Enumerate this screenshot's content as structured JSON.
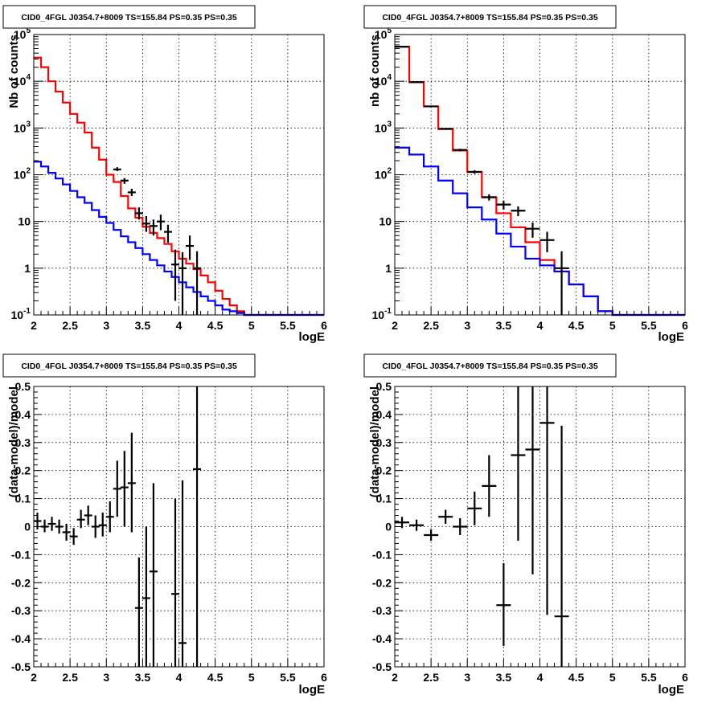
{
  "chart_data": [
    {
      "type": "step",
      "title": "CID0_4FGL J0354.7+8009 TS=155.84 PS=0.35 PS=0.35",
      "xlabel": "logE",
      "ylabel": "Nb of counts",
      "log_y": true,
      "xlim": [
        2,
        6
      ],
      "ylim": [
        0.1,
        100000
      ],
      "grid": true,
      "xticks": [
        "2",
        "2.5",
        "3",
        "3.5",
        "4",
        "4.5",
        "5",
        "5.5",
        "6"
      ],
      "yticks": [
        "10^-1",
        "1",
        "10",
        "10^2",
        "10^3",
        "10^4",
        "10^5"
      ],
      "series": [
        {
          "color": "#ff0000",
          "edges": [
            2.0,
            2.1,
            2.2,
            2.3,
            2.4,
            2.5,
            2.6,
            2.7,
            2.8,
            2.9,
            3.0,
            3.1,
            3.2,
            3.3,
            3.4,
            3.5,
            3.6,
            3.7,
            3.8,
            3.9,
            4.0,
            4.1,
            4.2,
            4.3,
            4.4,
            4.5,
            4.6,
            4.7,
            4.8,
            4.9,
            5.0,
            5.1,
            5.2,
            5.3,
            5.4,
            5.5,
            5.6,
            5.7,
            5.8,
            5.9,
            6.0
          ],
          "values": [
            32000,
            20000,
            10000,
            6000,
            3500,
            2000,
            1300,
            800,
            380,
            210,
            100,
            70,
            35,
            19,
            12,
            7.7,
            5.7,
            4.4,
            3.3,
            2.3,
            1.6,
            1.25,
            0.95,
            0.7,
            0.5,
            0.33,
            0.22,
            0.16,
            0.12,
            0.1,
            0.1,
            0.1,
            0.1,
            0.1,
            0.1,
            0.1,
            0.1,
            0.1,
            0.1,
            0.1
          ]
        },
        {
          "color": "#0000ff",
          "edges": [
            2.0,
            2.1,
            2.2,
            2.3,
            2.4,
            2.5,
            2.6,
            2.7,
            2.8,
            2.9,
            3.0,
            3.1,
            3.2,
            3.3,
            3.4,
            3.5,
            3.6,
            3.7,
            3.8,
            3.9,
            4.0,
            4.1,
            4.2,
            4.3,
            4.4,
            4.5,
            4.6,
            4.7,
            4.8,
            4.9,
            5.0,
            5.1,
            5.2,
            5.3,
            5.4,
            5.5,
            5.6,
            5.7,
            5.8,
            5.9,
            6.0
          ],
          "values": [
            190,
            150,
            110,
            83,
            62,
            45,
            33,
            25,
            17.5,
            12.5,
            9.3,
            6.6,
            4.8,
            3.6,
            2.7,
            2.0,
            1.5,
            1.15,
            0.85,
            0.65,
            0.5,
            0.39,
            0.31,
            0.25,
            0.2,
            0.16,
            0.13,
            0.12,
            0.11,
            0.1,
            0.1,
            0.1,
            0.1,
            0.1,
            0.1,
            0.1,
            0.1,
            0.1,
            0.1,
            0.1
          ]
        }
      ],
      "points": [
        {
          "x": 3.15,
          "y": 130,
          "ylo": 120,
          "yhi": 145
        },
        {
          "x": 3.25,
          "y": 75,
          "ylo": 64,
          "yhi": 85
        },
        {
          "x": 3.35,
          "y": 42,
          "ylo": 35,
          "yhi": 50
        },
        {
          "x": 3.45,
          "y": 15,
          "ylo": 11,
          "yhi": 20
        },
        {
          "x": 3.55,
          "y": 9,
          "ylo": 6,
          "yhi": 13
        },
        {
          "x": 3.65,
          "y": 8,
          "ylo": 5,
          "yhi": 11
        },
        {
          "x": 3.75,
          "y": 10,
          "ylo": 6.5,
          "yhi": 14
        },
        {
          "x": 3.85,
          "y": 6,
          "ylo": 3.5,
          "yhi": 8.5
        },
        {
          "x": 3.95,
          "y": 1.2,
          "ylo": 0.2,
          "yhi": 2.5
        },
        {
          "x": 4.05,
          "y": 1.0,
          "ylo": 0.1,
          "yhi": 2.2
        },
        {
          "x": 4.15,
          "y": 3,
          "ylo": 1.5,
          "yhi": 5
        },
        {
          "x": 4.25,
          "y": 1.0,
          "ylo": 0.1,
          "yhi": 2.3
        }
      ]
    },
    {
      "type": "step",
      "title": "CID0_4FGL J0354.7+8009 TS=155.84 PS=0.35 PS=0.35",
      "xlabel": "logE",
      "ylabel": "nb of counts",
      "log_y": true,
      "xlim": [
        2,
        6
      ],
      "ylim": [
        0.1,
        100000
      ],
      "grid": true,
      "xticks": [
        "2",
        "2.5",
        "3",
        "3.5",
        "4",
        "4.5",
        "5",
        "5.5",
        "6"
      ],
      "yticks": [
        "10^-1",
        "1",
        "10",
        "10^2",
        "10^3",
        "10^4",
        "10^5"
      ],
      "series": [
        {
          "color": "#ff0000",
          "edges": [
            2.0,
            2.2,
            2.4,
            2.6,
            2.8,
            3.0,
            3.2,
            3.4,
            3.6,
            3.8,
            4.0,
            4.2,
            4.4,
            4.6,
            4.8,
            5.0,
            5.2,
            5.4,
            5.6,
            5.8,
            6.0
          ],
          "values": [
            55000,
            9500,
            2900,
            950,
            330,
            115,
            33,
            15,
            7.5,
            3.6,
            1.5,
            0.85,
            0.45,
            0.25,
            0.12,
            0.1,
            0.1,
            0.1,
            0.1,
            0.1
          ]
        },
        {
          "color": "#0000ff",
          "edges": [
            2.0,
            2.2,
            2.4,
            2.6,
            2.8,
            3.0,
            3.2,
            3.4,
            3.6,
            3.8,
            4.0,
            4.2,
            4.4,
            4.6,
            4.8,
            5.0,
            5.2,
            5.4,
            5.6,
            5.8,
            6.0
          ],
          "values": [
            380,
            270,
            150,
            75,
            40,
            20,
            11,
            5.5,
            2.9,
            1.6,
            1.15,
            0.85,
            0.45,
            0.25,
            0.12,
            0.1,
            0.1,
            0.1,
            0.1,
            0.1
          ]
        }
      ],
      "points": [
        {
          "x": 2.1,
          "y": 55000,
          "ylo": 53000,
          "yhi": 57000
        },
        {
          "x": 2.3,
          "y": 9600,
          "ylo": 9300,
          "yhi": 9900
        },
        {
          "x": 2.5,
          "y": 2900,
          "ylo": 2800,
          "yhi": 3000
        },
        {
          "x": 2.7,
          "y": 960,
          "ylo": 930,
          "yhi": 990
        },
        {
          "x": 2.9,
          "y": 340,
          "ylo": 320,
          "yhi": 360
        },
        {
          "x": 3.1,
          "y": 115,
          "ylo": 105,
          "yhi": 125
        },
        {
          "x": 3.3,
          "y": 33,
          "ylo": 28,
          "yhi": 38
        },
        {
          "x": 3.5,
          "y": 23,
          "ylo": 18,
          "yhi": 28
        },
        {
          "x": 3.7,
          "y": 17,
          "ylo": 13,
          "yhi": 21
        },
        {
          "x": 3.9,
          "y": 7,
          "ylo": 4.5,
          "yhi": 9.5
        },
        {
          "x": 4.1,
          "y": 4,
          "ylo": 2.2,
          "yhi": 6
        },
        {
          "x": 4.3,
          "y": 1.0,
          "ylo": 0.1,
          "yhi": 2.3
        }
      ]
    },
    {
      "type": "scatter",
      "title": "CID0_4FGL J0354.7+8009 TS=155.84 PS=0.35 PS=0.35",
      "xlabel": "logE",
      "ylabel": "(data-model)/model",
      "log_y": false,
      "xlim": [
        2,
        6
      ],
      "ylim": [
        -0.5,
        0.5
      ],
      "grid": true,
      "xticks": [
        "2",
        "2.5",
        "3",
        "3.5",
        "4",
        "4.5",
        "5",
        "5.5",
        "6"
      ],
      "yticks": [
        "-0.5",
        "-0.4",
        "-0.3",
        "-0.2",
        "-0.1",
        "0",
        "0.1",
        "0.2",
        "0.3",
        "0.4",
        "0.5"
      ],
      "points": [
        {
          "x": 2.05,
          "y": 0.02,
          "ylo": -0.01,
          "yhi": 0.05
        },
        {
          "x": 2.15,
          "y": 0.0,
          "ylo": -0.02,
          "yhi": 0.025
        },
        {
          "x": 2.25,
          "y": 0.01,
          "ylo": -0.015,
          "yhi": 0.035
        },
        {
          "x": 2.35,
          "y": 0.0,
          "ylo": -0.025,
          "yhi": 0.025
        },
        {
          "x": 2.45,
          "y": -0.02,
          "ylo": -0.05,
          "yhi": 0.01
        },
        {
          "x": 2.55,
          "y": -0.035,
          "ylo": -0.065,
          "yhi": -0.005
        },
        {
          "x": 2.65,
          "y": 0.025,
          "ylo": -0.005,
          "yhi": 0.06
        },
        {
          "x": 2.75,
          "y": 0.04,
          "ylo": 0.005,
          "yhi": 0.075
        },
        {
          "x": 2.85,
          "y": 0.0,
          "ylo": -0.04,
          "yhi": 0.04
        },
        {
          "x": 2.95,
          "y": 0.005,
          "ylo": -0.035,
          "yhi": 0.05
        },
        {
          "x": 3.05,
          "y": 0.035,
          "ylo": -0.02,
          "yhi": 0.09
        },
        {
          "x": 3.15,
          "y": 0.135,
          "ylo": 0.035,
          "yhi": 0.235
        },
        {
          "x": 3.25,
          "y": 0.14,
          "ylo": 0.0,
          "yhi": 0.27
        },
        {
          "x": 3.35,
          "y": 0.155,
          "ylo": -0.02,
          "yhi": 0.335
        },
        {
          "x": 3.45,
          "y": -0.29,
          "ylo": -0.5,
          "yhi": -0.11
        },
        {
          "x": 3.55,
          "y": -0.255,
          "ylo": -0.5,
          "yhi": 0.0
        },
        {
          "x": 3.65,
          "y": -0.16,
          "ylo": -0.5,
          "yhi": 0.155
        },
        {
          "x": 3.95,
          "y": -0.24,
          "ylo": -0.5,
          "yhi": 0.1
        },
        {
          "x": 4.05,
          "y": -0.415,
          "ylo": -0.5,
          "yhi": 0.165
        },
        {
          "x": 4.25,
          "y": 0.205,
          "ylo": -0.5,
          "yhi": 0.5
        }
      ]
    },
    {
      "type": "scatter",
      "title": "CID0_4FGL J0354.7+8009 TS=155.84 PS=0.35 PS=0.35",
      "xlabel": "logE",
      "ylabel": "(data-model)/model",
      "log_y": false,
      "xlim": [
        2,
        6
      ],
      "ylim": [
        -0.5,
        0.5
      ],
      "grid": true,
      "xticks": [
        "2",
        "2.5",
        "3",
        "3.5",
        "4",
        "4.5",
        "5",
        "5.5",
        "6"
      ],
      "yticks": [
        "-0.5",
        "-0.4",
        "-0.3",
        "-0.2",
        "-0.1",
        "0",
        "0.1",
        "0.2",
        "0.3",
        "0.4",
        "0.5"
      ],
      "points": [
        {
          "x": 2.1,
          "y": 0.015,
          "ylo": -0.005,
          "yhi": 0.035
        },
        {
          "x": 2.3,
          "y": 0.005,
          "ylo": -0.015,
          "yhi": 0.025
        },
        {
          "x": 2.5,
          "y": -0.03,
          "ylo": -0.05,
          "yhi": -0.01
        },
        {
          "x": 2.7,
          "y": 0.035,
          "ylo": 0.01,
          "yhi": 0.06
        },
        {
          "x": 2.9,
          "y": 0.0,
          "ylo": -0.03,
          "yhi": 0.03
        },
        {
          "x": 3.1,
          "y": 0.065,
          "ylo": 0.005,
          "yhi": 0.125
        },
        {
          "x": 3.3,
          "y": 0.145,
          "ylo": 0.035,
          "yhi": 0.255
        },
        {
          "x": 3.5,
          "y": -0.28,
          "ylo": -0.425,
          "yhi": -0.13
        },
        {
          "x": 3.7,
          "y": 0.255,
          "ylo": -0.05,
          "yhi": 0.5
        },
        {
          "x": 3.9,
          "y": 0.275,
          "ylo": -0.17,
          "yhi": 0.5
        },
        {
          "x": 4.1,
          "y": 0.37,
          "ylo": -0.315,
          "yhi": 0.5
        },
        {
          "x": 4.3,
          "y": -0.32,
          "ylo": -0.5,
          "yhi": 0.36
        }
      ]
    }
  ]
}
